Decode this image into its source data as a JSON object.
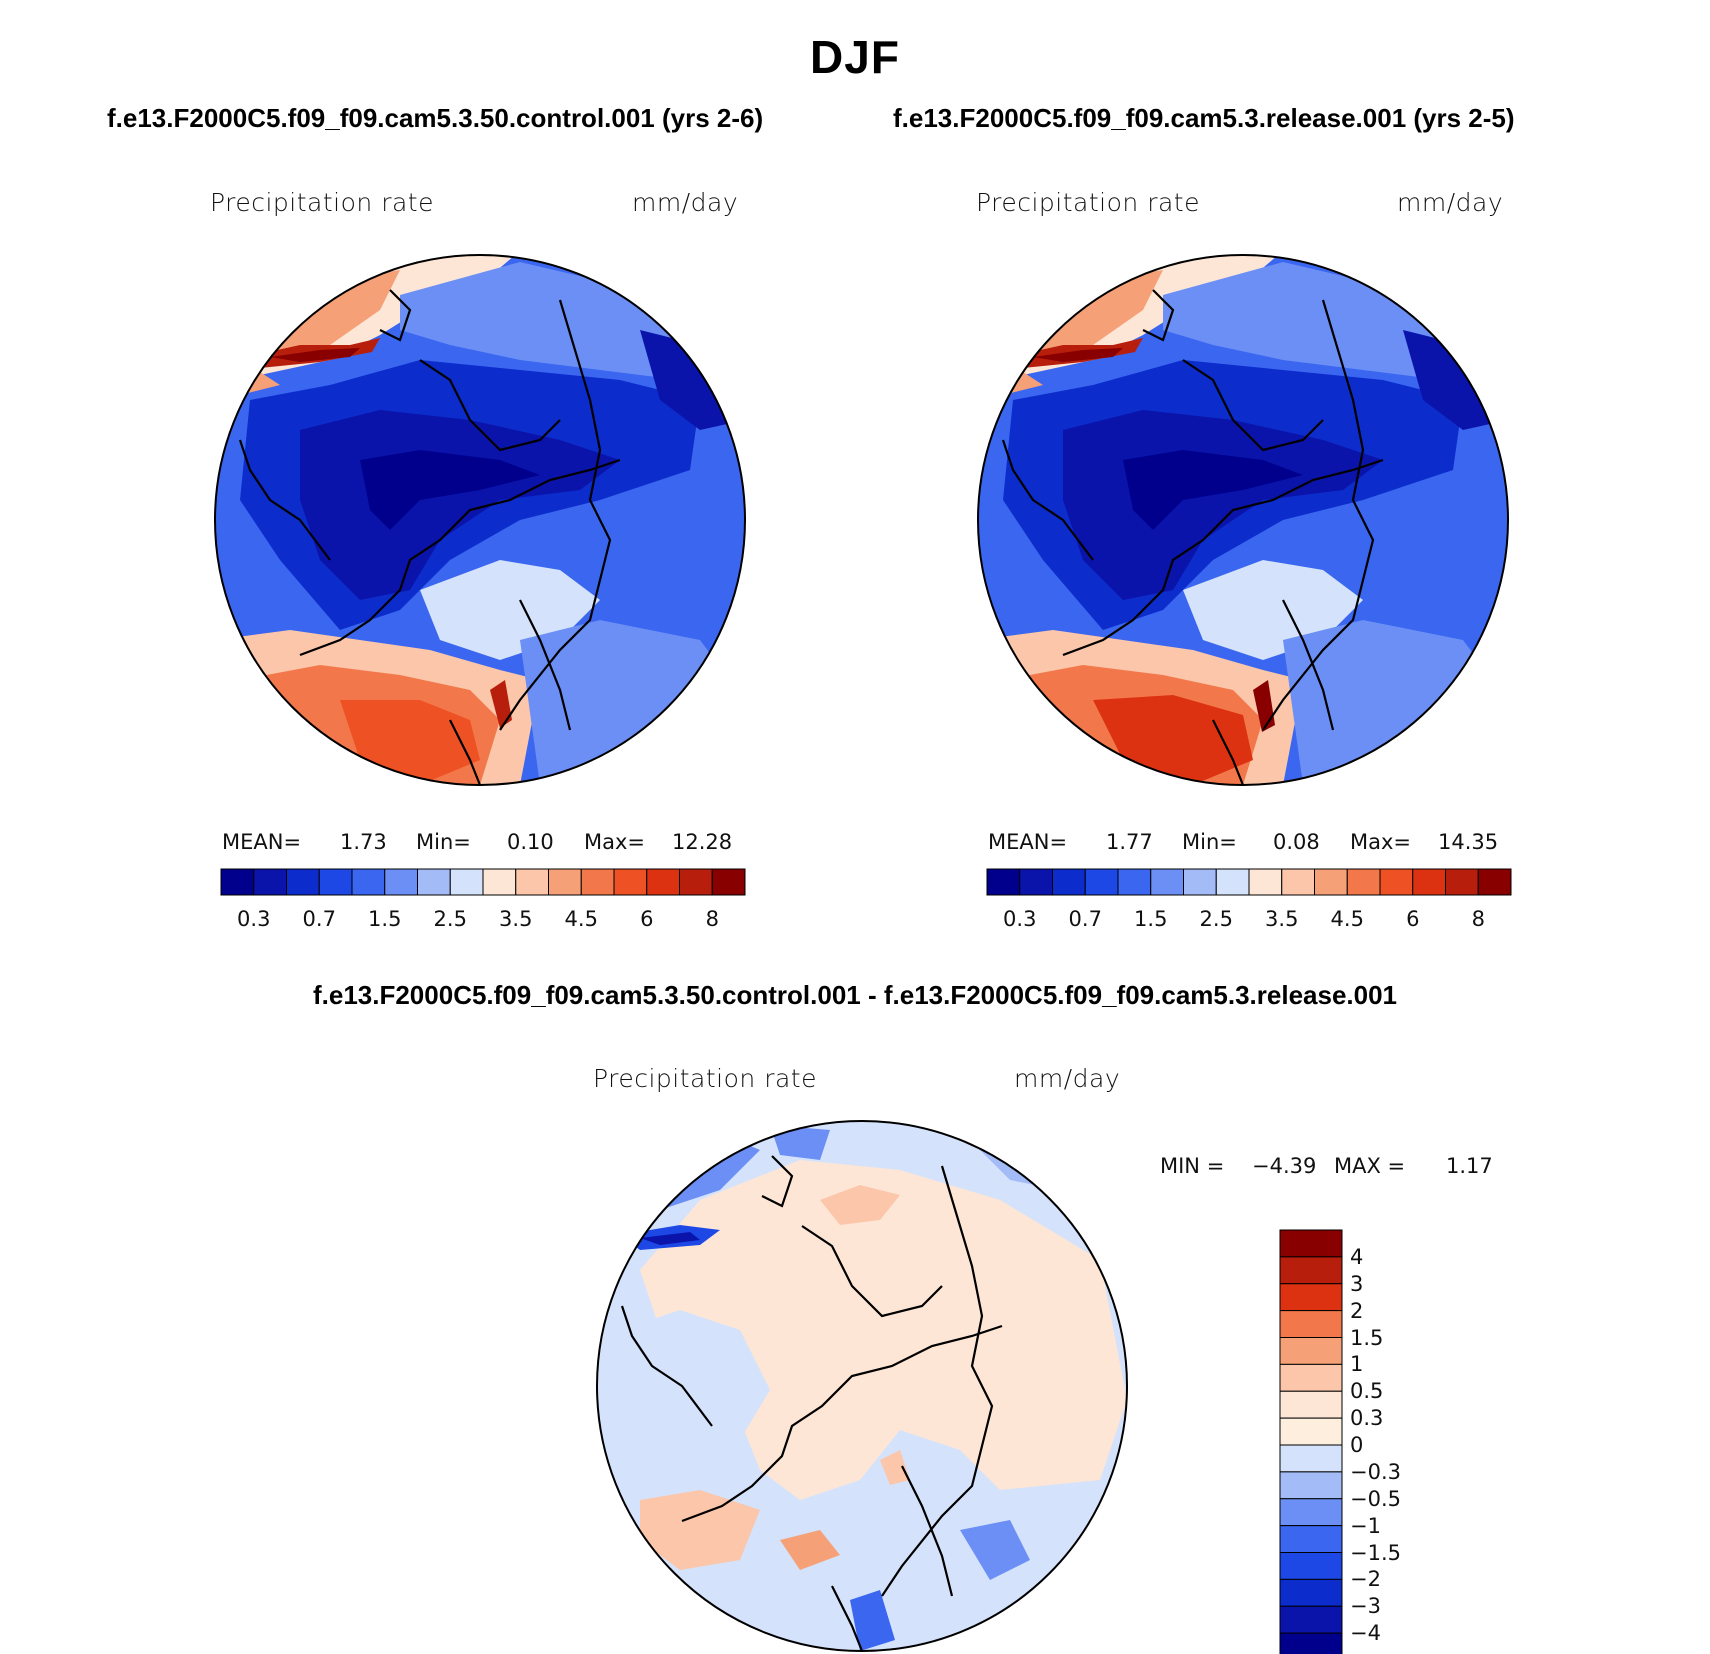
{
  "figure": {
    "title": "DJF",
    "case_a_title": "f.e13.F2000C5.f09_f09.cam5.3.50.control.001 (yrs 2-6)",
    "case_b_title": "f.e13.F2000C5.f09_f09.cam5.3.release.001 (yrs 2-5)",
    "diff_title": "f.e13.F2000C5.f09_f09.cam5.3.50.control.001 - f.e13.F2000C5.f09_f09.cam5.3.release.001"
  },
  "chart_data": [
    {
      "type": "heatmap",
      "projection": "north polar stereographic",
      "variable": "Precipitation rate",
      "units": "mm/day",
      "stats": {
        "mean_label": "MEAN=",
        "mean": "1.73",
        "min_label": "Min=",
        "min": "0.10",
        "max_label": "Max=",
        "max": "12.28"
      },
      "colorbar_orientation": "horizontal",
      "levels": [
        0.2,
        0.3,
        0.5,
        0.7,
        1,
        1.5,
        2,
        2.5,
        3,
        3.5,
        4,
        4.5,
        5,
        6,
        7,
        8
      ],
      "tick_labels": [
        "0.3",
        "0.7",
        "1.5",
        "2.5",
        "3.5",
        "4.5",
        "6",
        "8"
      ],
      "colors": [
        "#00008c",
        "#0a14aa",
        "#0c2ccc",
        "#1d48e6",
        "#3a66f0",
        "#6b8ff5",
        "#a3bcf8",
        "#d4e3fb",
        "#fde6d6",
        "#fbc6a9",
        "#f6a077",
        "#f2784b",
        "#ee5124",
        "#dd3212",
        "#b81e0c",
        "#880000"
      ]
    },
    {
      "type": "heatmap",
      "projection": "north polar stereographic",
      "variable": "Precipitation rate",
      "units": "mm/day",
      "stats": {
        "mean_label": "MEAN=",
        "mean": "1.77",
        "min_label": "Min=",
        "min": "0.08",
        "max_label": "Max=",
        "max": "14.35"
      },
      "colorbar_orientation": "horizontal",
      "levels": [
        0.2,
        0.3,
        0.5,
        0.7,
        1,
        1.5,
        2,
        2.5,
        3,
        3.5,
        4,
        4.5,
        5,
        6,
        7,
        8
      ],
      "tick_labels": [
        "0.3",
        "0.7",
        "1.5",
        "2.5",
        "3.5",
        "4.5",
        "6",
        "8"
      ],
      "colors": [
        "#00008c",
        "#0a14aa",
        "#0c2ccc",
        "#1d48e6",
        "#3a66f0",
        "#6b8ff5",
        "#a3bcf8",
        "#d4e3fb",
        "#fde6d6",
        "#fbc6a9",
        "#f6a077",
        "#f2784b",
        "#ee5124",
        "#dd3212",
        "#b81e0c",
        "#880000"
      ]
    },
    {
      "type": "heatmap",
      "projection": "north polar stereographic",
      "variable": "Precipitation rate",
      "units": "mm/day",
      "stats": {
        "min_label": "MIN =",
        "min": "−4.39",
        "max_label": "MAX =",
        "max": "1.17"
      },
      "colorbar_orientation": "vertical",
      "tick_labels": [
        "4",
        "3",
        "2",
        "1.5",
        "1",
        "0.5",
        "0.3",
        "0",
        "−0.3",
        "−0.5",
        "−1",
        "−1.5",
        "−2",
        "−3",
        "−4"
      ],
      "colors": [
        "#880000",
        "#b81e0c",
        "#dd3212",
        "#f2784b",
        "#f6a077",
        "#fbc6a9",
        "#fde6d6",
        "#fdeede",
        "#d4e3fb",
        "#a3bcf8",
        "#6b8ff5",
        "#3a66f0",
        "#1d48e6",
        "#0c2ccc",
        "#0a14aa",
        "#00008c"
      ]
    }
  ]
}
